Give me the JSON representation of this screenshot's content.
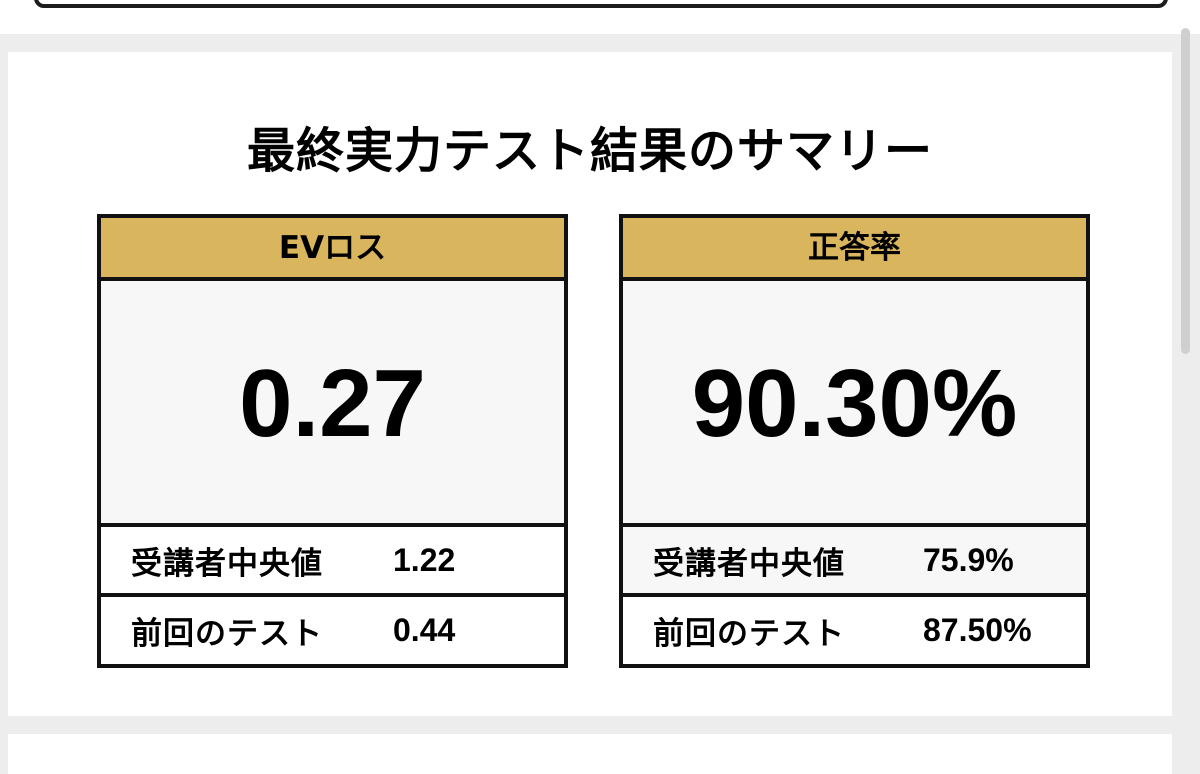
{
  "summary": {
    "title": "最終実力テスト結果のサマリー",
    "metrics": [
      {
        "header": "EVロス",
        "value": "0.27",
        "median_label": "受講者中央値",
        "median_value": "1.22",
        "previous_label": "前回のテスト",
        "previous_value": "0.44"
      },
      {
        "header": "正答率",
        "value": "90.30%",
        "median_label": "受講者中央値",
        "median_value": "75.9%",
        "previous_label": "前回のテスト",
        "previous_value": "87.50%"
      }
    ]
  },
  "colors": {
    "header_gold": "#d9b65e",
    "border": "#111111",
    "value_bg": "#f7f7f7",
    "page_bg": "#ededed"
  }
}
